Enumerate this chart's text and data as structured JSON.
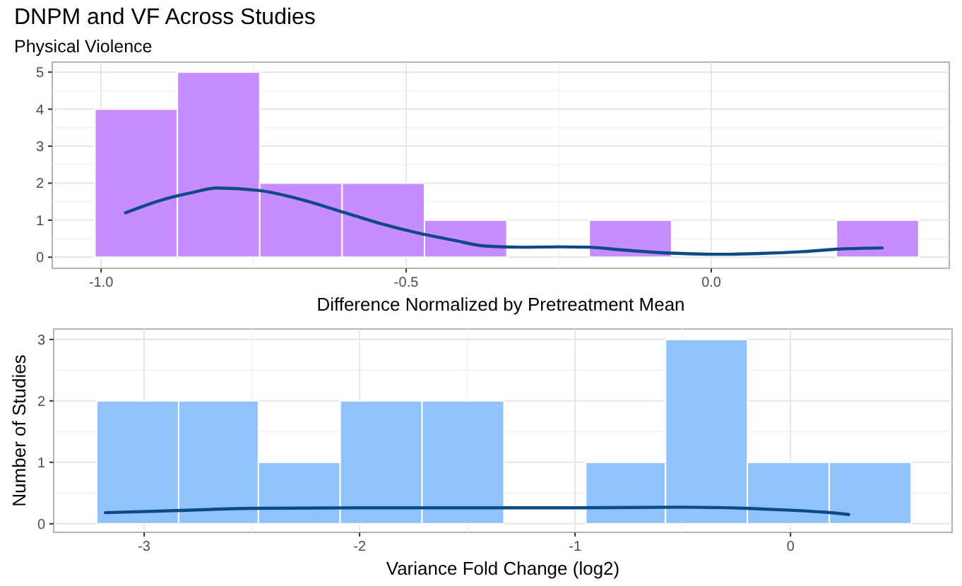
{
  "chart_data": [
    {
      "type": "histogram",
      "title": "DNPM and VF Across Studies",
      "subtitle": "Physical Violence",
      "xlabel": "Difference Normalized by Pretreatment Mean",
      "xlim": [
        -1.08,
        0.39
      ],
      "xticks": [
        {
          "value": -1,
          "label": "-1.0"
        },
        -0.5,
        {
          "value": 0,
          "label": "0.0"
        }
      ],
      "ylim": [
        -0.3,
        5.27
      ],
      "yticks": [
        0,
        1,
        2,
        3,
        4,
        5
      ],
      "grid": true,
      "series": [
        {
          "color": "#c78cff",
          "bins": [
            -1.01,
            -0.875,
            -0.74,
            -0.605,
            -0.47,
            -0.335,
            -0.2,
            -0.065,
            0.07,
            0.205,
            0.34
          ],
          "values": [
            4,
            5,
            2,
            2,
            1,
            0,
            1,
            0,
            0,
            1
          ]
        },
        {
          "type": "line",
          "color": "#0d4a87",
          "x": [
            -0.96,
            -0.9,
            -0.85,
            -0.81,
            -0.74,
            -0.67,
            -0.6,
            -0.54,
            -0.48,
            -0.42,
            -0.37,
            -0.31,
            -0.25,
            -0.2,
            -0.15,
            -0.1,
            -0.05,
            0.0,
            0.03,
            0.08,
            0.15,
            0.21,
            0.28
          ],
          "values": [
            1.2,
            1.55,
            1.75,
            1.87,
            1.8,
            1.55,
            1.2,
            0.9,
            0.65,
            0.45,
            0.3,
            0.27,
            0.28,
            0.27,
            0.2,
            0.14,
            0.1,
            0.08,
            0.08,
            0.1,
            0.15,
            0.22,
            0.25
          ]
        }
      ]
    },
    {
      "type": "histogram",
      "xlabel": "Variance Fold Change (log2)",
      "ylabel": "Number of Studies",
      "xlim": [
        -3.42,
        0.75
      ],
      "xticks": [
        -3,
        -2,
        -1,
        0
      ],
      "ylim": [
        -0.14,
        3.17
      ],
      "yticks": [
        0,
        1,
        2,
        3
      ],
      "grid": true,
      "series": [
        {
          "color": "#90c3fc",
          "bins": [
            -3.22,
            -2.84,
            -2.47,
            -2.09,
            -1.71,
            -1.33,
            -0.95,
            -0.58,
            -0.2,
            0.18,
            0.56
          ],
          "values": [
            2,
            2,
            1,
            2,
            2,
            0,
            1,
            3,
            1,
            1
          ]
        },
        {
          "type": "line",
          "color": "#0d4a87",
          "x": [
            -3.18,
            -2.8,
            -2.5,
            -2.0,
            -1.5,
            -1.0,
            -0.5,
            -0.2,
            0.0,
            0.15,
            0.27
          ],
          "values": [
            0.18,
            0.22,
            0.25,
            0.26,
            0.26,
            0.26,
            0.27,
            0.25,
            0.22,
            0.19,
            0.15
          ]
        }
      ]
    }
  ]
}
